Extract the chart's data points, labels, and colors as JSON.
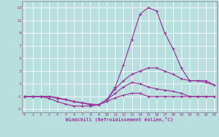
{
  "xlabel": "Windchill (Refroidissement éolien,°C)",
  "bg_color": "#b8dede",
  "grid_color": "#ffffff",
  "line_color": "#993399",
  "x_values": [
    0,
    1,
    2,
    3,
    4,
    5,
    6,
    7,
    8,
    9,
    10,
    11,
    12,
    13,
    14,
    15,
    16,
    17,
    18,
    19,
    20,
    21,
    22,
    23
  ],
  "series": [
    [
      -1.0,
      -1.0,
      -1.0,
      -1.3,
      -1.8,
      -2.2,
      -2.5,
      -2.5,
      -2.5,
      -2.3,
      -1.8,
      -1.2,
      -0.8,
      -0.5,
      -0.5,
      -1.0,
      -1.0,
      -1.0,
      -1.0,
      -1.0,
      -1.0,
      -1.0,
      -1.0,
      -1.0
    ],
    [
      -1.0,
      -1.0,
      -1.0,
      -1.0,
      -1.3,
      -1.5,
      -1.8,
      -2.0,
      -2.2,
      -2.3,
      -1.5,
      -0.5,
      0.5,
      1.2,
      1.0,
      0.5,
      0.2,
      0.0,
      -0.2,
      -0.5,
      -1.0,
      -1.0,
      -1.0,
      -1.0
    ],
    [
      -1.0,
      -1.0,
      -1.0,
      -1.0,
      -1.2,
      -1.5,
      -1.8,
      -2.0,
      -2.3,
      -2.3,
      -1.5,
      0.2,
      1.5,
      2.5,
      3.0,
      3.5,
      3.5,
      3.0,
      2.5,
      1.8,
      1.5,
      1.5,
      1.5,
      0.8
    ],
    [
      -1.0,
      -1.0,
      -1.0,
      -1.0,
      -1.2,
      -1.5,
      -1.8,
      -2.0,
      -2.3,
      -2.3,
      -1.5,
      0.5,
      4.0,
      8.0,
      12.0,
      13.0,
      12.5,
      9.0,
      6.5,
      3.5,
      1.5,
      1.5,
      1.2,
      0.8
    ]
  ],
  "ylim": [
    -3.5,
    14.0
  ],
  "yticks": [
    -3,
    -1,
    1,
    3,
    5,
    7,
    9,
    11,
    13
  ],
  "xlim": [
    -0.3,
    23.3
  ]
}
